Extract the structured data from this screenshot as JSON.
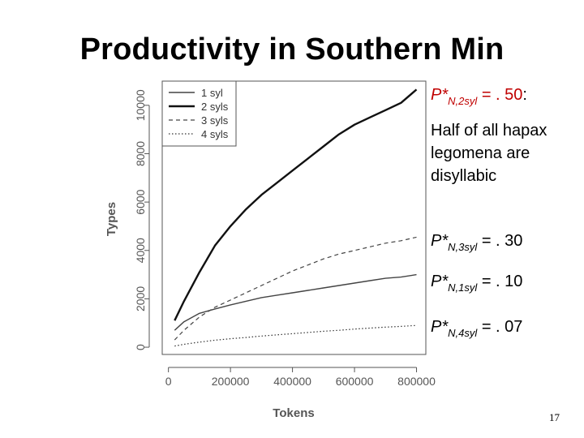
{
  "slide": {
    "title": "Productivity in Southern Min",
    "page_number": "17",
    "notes": [
      {
        "p": "P*",
        "sub": "N,2syl",
        "value": "= . 50",
        "suffix": ":"
      },
      {
        "text": "Half of all hapax legomena are disyllabic",
        "lines": [
          "Half of all hapax",
          "legomena are",
          "disyllabic"
        ]
      },
      {
        "p": "P*",
        "sub": "N,3syl",
        "value": "= . 30"
      },
      {
        "p": "P*",
        "sub": "N,1syl",
        "value": "= . 10"
      },
      {
        "p": "P*",
        "sub": "N,4syl",
        "value": "= . 07"
      }
    ]
  },
  "colors": {
    "accent": "#c00000",
    "text": "#000000",
    "axis": "#555555"
  },
  "chart_data": {
    "type": "line",
    "xlabel": "Tokens",
    "ylabel": "Types",
    "xlim": [
      -20000,
      830000
    ],
    "ylim": [
      -300,
      11000
    ],
    "xticks": [
      0,
      200000,
      400000,
      600000,
      800000
    ],
    "xtick_labels": [
      "0",
      "200000",
      "400000",
      "600000",
      "800000"
    ],
    "yticks": [
      0,
      2000,
      4000,
      6000,
      8000,
      10000
    ],
    "ytick_labels": [
      "0",
      "2000",
      "4000",
      "6000",
      "8000",
      "10000"
    ],
    "grid": false,
    "legend_position": "top-left",
    "x": [
      20000,
      50000,
      100000,
      150000,
      200000,
      250000,
      300000,
      350000,
      400000,
      450000,
      500000,
      550000,
      600000,
      650000,
      700000,
      750000,
      800000
    ],
    "series": [
      {
        "name": "1 syl",
        "style": "solid-thin",
        "values": [
          700,
          1050,
          1400,
          1580,
          1750,
          1900,
          2050,
          2150,
          2250,
          2350,
          2450,
          2550,
          2650,
          2750,
          2850,
          2900,
          3000
        ]
      },
      {
        "name": "2 syls",
        "style": "solid-thick",
        "values": [
          1100,
          1900,
          3100,
          4200,
          5000,
          5700,
          6300,
          6800,
          7300,
          7800,
          8300,
          8800,
          9200,
          9500,
          9800,
          10100,
          10650
        ]
      },
      {
        "name": "3 syls",
        "style": "dashed",
        "values": [
          300,
          700,
          1250,
          1650,
          1950,
          2250,
          2550,
          2850,
          3150,
          3400,
          3650,
          3850,
          4000,
          4150,
          4300,
          4400,
          4550
        ]
      },
      {
        "name": "4 syls",
        "style": "dotted",
        "values": [
          50,
          120,
          210,
          290,
          350,
          400,
          460,
          510,
          560,
          610,
          660,
          700,
          750,
          790,
          830,
          860,
          900
        ]
      }
    ]
  }
}
